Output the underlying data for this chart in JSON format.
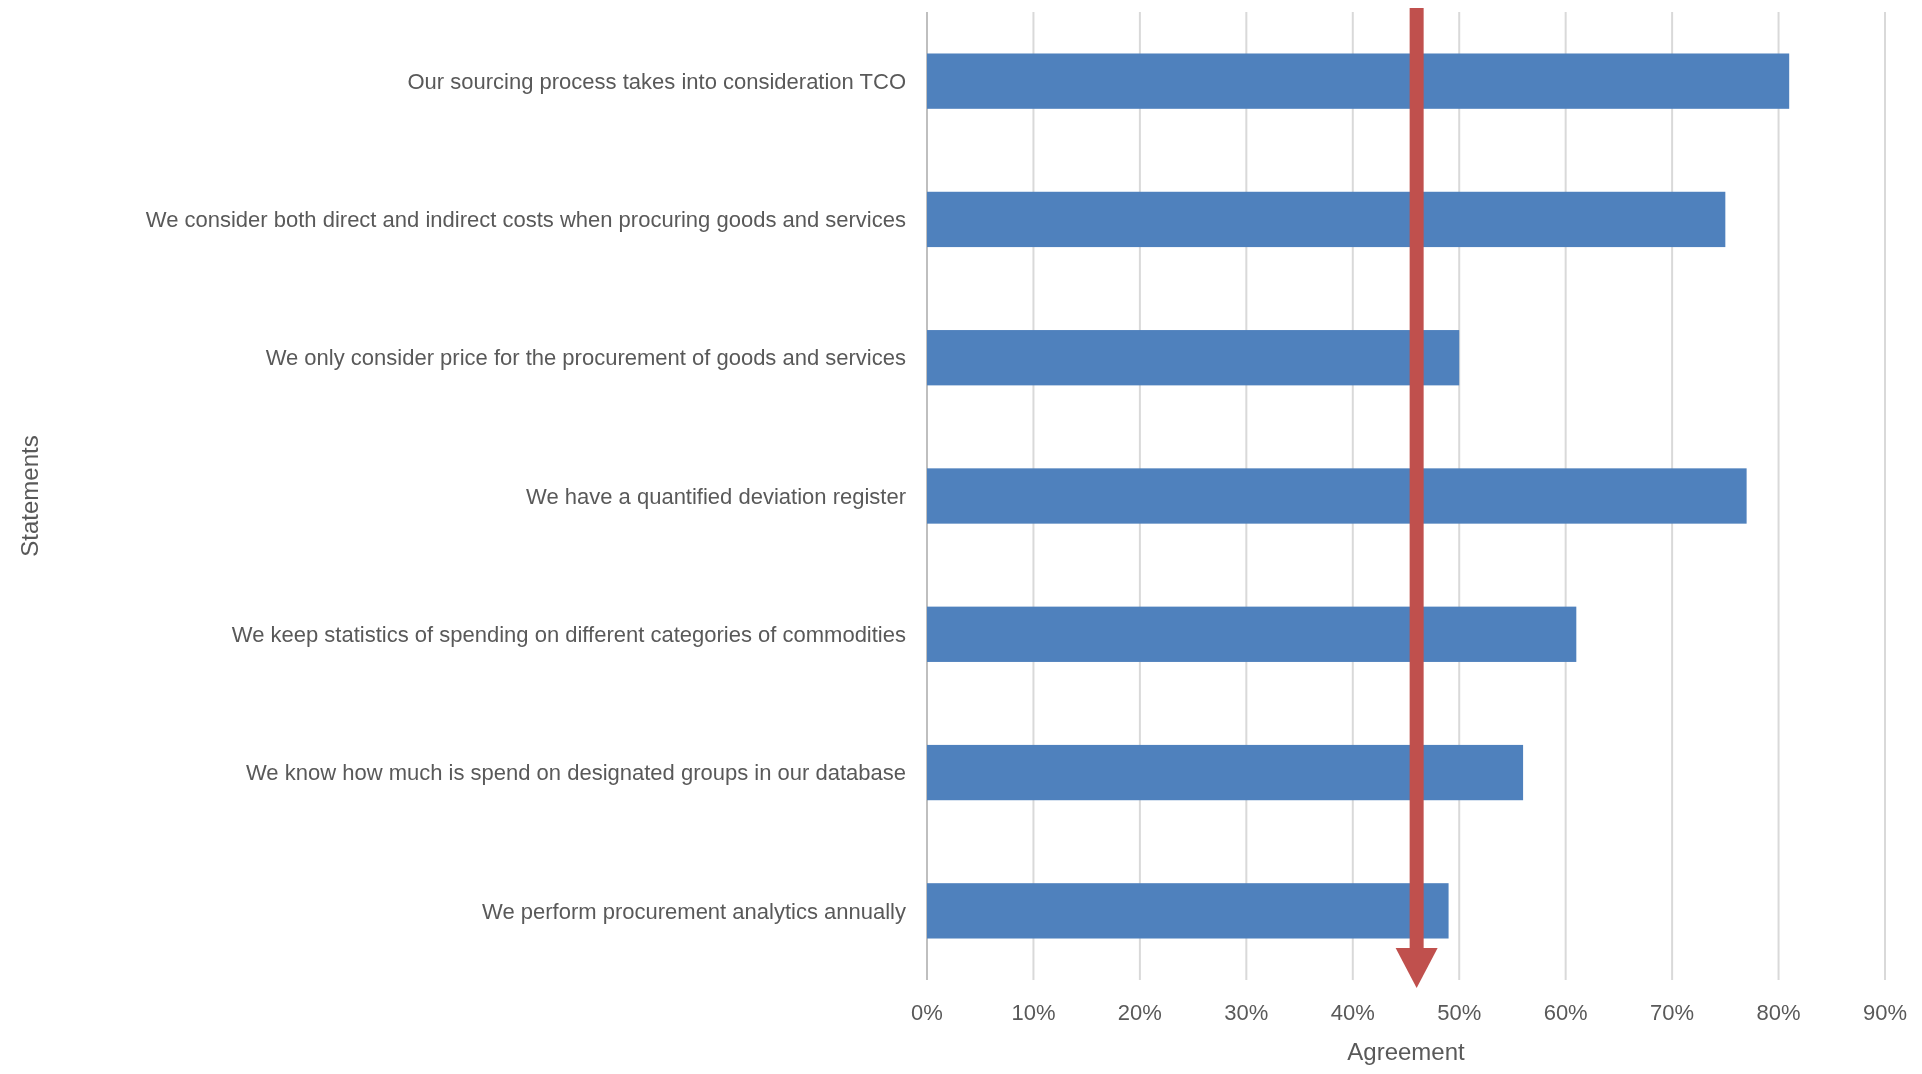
{
  "chart_data": {
    "type": "bar",
    "orientation": "horizontal",
    "xlabel": "Agreement",
    "ylabel": "Statements",
    "categories": [
      "Our sourcing process takes into consideration TCO",
      "We consider both direct and indirect costs when procuring goods and services",
      "We only consider price for the procurement of goods and services",
      "We have a quantified deviation register",
      "We keep statistics of spending on different categories of commodities",
      "We know how much is spend on designated groups in our database",
      "We perform procurement analytics annually"
    ],
    "values": [
      81,
      75,
      50,
      77,
      61,
      56,
      49
    ],
    "color": "#4f81bd",
    "xlim": [
      0,
      90
    ],
    "xticks": [
      {
        "value": 0,
        "label": "0%"
      },
      {
        "value": 10,
        "label": "10%"
      },
      {
        "value": 20,
        "label": "20%"
      },
      {
        "value": 30,
        "label": "30%"
      },
      {
        "value": 40,
        "label": "40%"
      },
      {
        "value": 50,
        "label": "50%"
      },
      {
        "value": 60,
        "label": "60%"
      },
      {
        "value": 70,
        "label": "70%"
      },
      {
        "value": 80,
        "label": "80%"
      },
      {
        "value": 90,
        "label": "90%"
      }
    ],
    "grid": "x",
    "ref_lines": [
      {
        "axis": "x",
        "value": 46,
        "color": "#c0504d"
      }
    ]
  }
}
